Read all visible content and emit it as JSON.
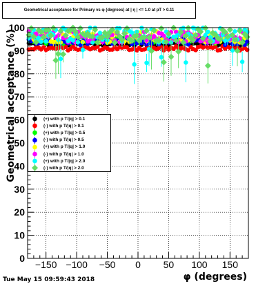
{
  "chart_data": {
    "type": "scatter",
    "title": "Geometrical acceptance for Primary vs φ (degrees) at |  η | <= 1.0 at pT > 0.11",
    "xlabel": "φ (degrees)",
    "ylabel": "Geometrical acceptance (%)",
    "xlim": [
      -180,
      180
    ],
    "ylim": [
      0,
      100
    ],
    "x_ticks": [
      -150,
      -100,
      -50,
      0,
      50,
      100,
      150
    ],
    "x_tick_labels": [
      "−150",
      "−100",
      "−50",
      "0",
      "50",
      "100",
      "150"
    ],
    "y_ticks": [
      0,
      10,
      20,
      30,
      40,
      50,
      60,
      70,
      80,
      90,
      100
    ],
    "y_tick_labels": [
      "0",
      "10",
      "20",
      "30",
      "40",
      "50",
      "60",
      "70",
      "80",
      "90",
      "100"
    ],
    "grid": true,
    "legend_position": "left-middle",
    "series": [
      {
        "name": "(+) with p T/|q| > 0.1",
        "color": "#000000",
        "marker": "circle",
        "level": 93.0,
        "noise": 0.9
      },
      {
        "name": "(-) with p T/|q| > 0.1",
        "color": "#ff0000",
        "marker": "circle",
        "level": 91.0,
        "noise": 0.9
      },
      {
        "name": "(+) with p T/|q| > 0.5",
        "color": "#00ff00",
        "marker": "circle",
        "level": 94.5,
        "noise": 1.5
      },
      {
        "name": "(-) with p T/|q| > 0.5",
        "color": "#0000ff",
        "marker": "circle",
        "level": 94.0,
        "noise": 1.5
      },
      {
        "name": "(+) with p T/|q| > 1.0",
        "color": "#ffff00",
        "marker": "circle",
        "level": 96.0,
        "noise": 2.5
      },
      {
        "name": "(-) with p T/|q| > 1.0",
        "color": "#ff00ff",
        "marker": "circle",
        "level": 96.0,
        "noise": 2.5
      },
      {
        "name": "(+) with p T/|q| > 2.0",
        "color": "#00ffff",
        "marker": "circle",
        "level": 97.0,
        "noise": 3.5
      },
      {
        "name": "(-) with p T/|q| > 2.0",
        "color": "#66dd66",
        "marker": "diamond",
        "level": 97.0,
        "noise": 3.5
      }
    ],
    "n_points": 90
  },
  "footer": {
    "date": "Tue May 15 09:59:43 2018"
  }
}
